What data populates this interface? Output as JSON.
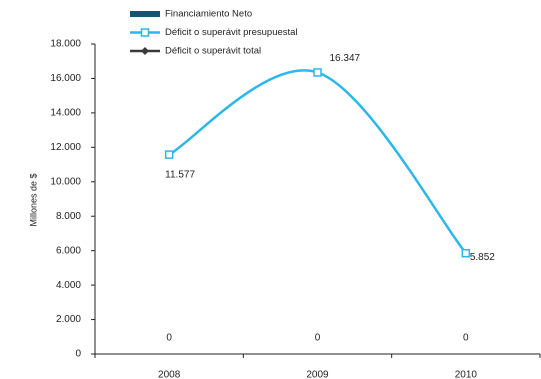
{
  "chart_data": {
    "type": "line",
    "y_axis_label": "Millones de $",
    "categories": [
      "2008",
      "2009",
      "2010"
    ],
    "series": [
      {
        "name": "Financiamiento Neto",
        "kind": "bar",
        "color": "#0f5773",
        "values": [
          0,
          0,
          0
        ]
      },
      {
        "name": "Déficit o superávit presupuestal",
        "kind": "line",
        "marker": "square",
        "color": "#2bb7ea",
        "values": [
          11577,
          16347,
          5852
        ],
        "value_labels": [
          "11.577",
          "16.347",
          "5.852"
        ]
      },
      {
        "name": "Déficit o superávit total",
        "kind": "line",
        "marker": "diamond",
        "color": "#3a3a3a",
        "values": [
          null,
          null,
          null
        ]
      }
    ],
    "ylim": [
      0,
      18000
    ],
    "yticks": [
      0,
      {
        "value": 2000,
        "label": "2.000"
      },
      {
        "value": 4000,
        "label": "4.000"
      },
      {
        "value": 6000,
        "label": "6.000"
      },
      {
        "value": 8000,
        "label": "8.000"
      },
      {
        "value": 10000,
        "label": "10.000"
      },
      {
        "value": 12000,
        "label": "12.000"
      },
      {
        "value": 14000,
        "label": "14.000"
      },
      {
        "value": 16000,
        "label": "16.000"
      },
      {
        "value": 18000,
        "label": "18.000"
      }
    ],
    "grid": false
  }
}
